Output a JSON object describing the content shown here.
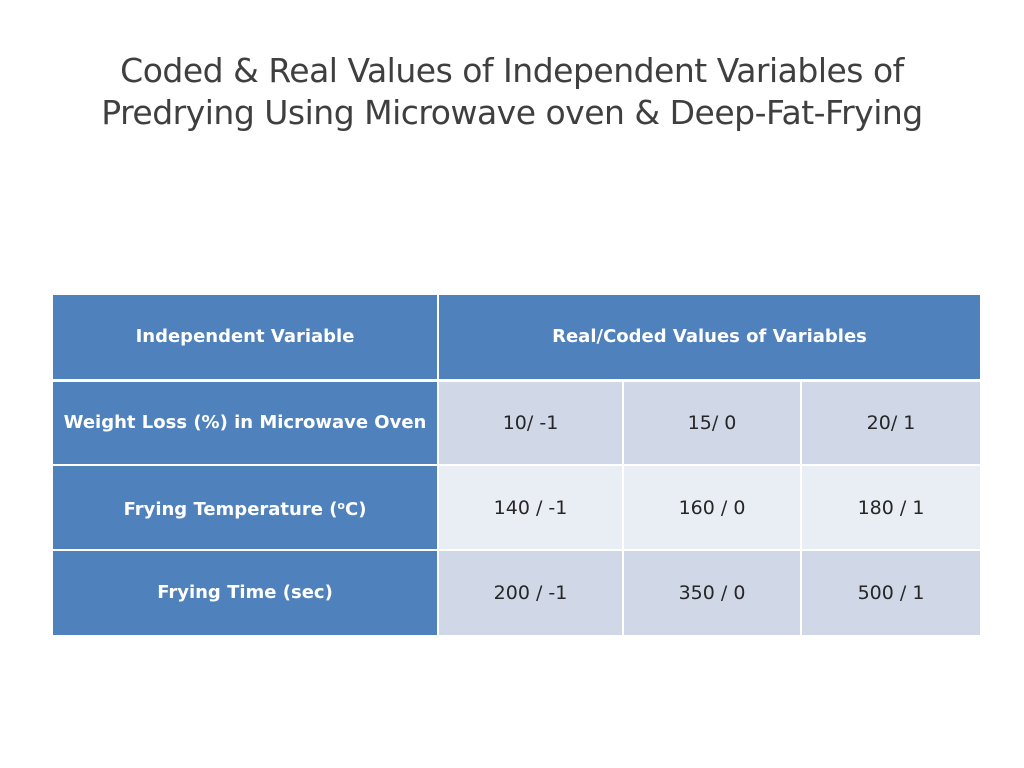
{
  "title": {
    "line1": "Coded & Real Values of Independent Variables of",
    "line2": "Predrying Using Microwave oven & Deep-Fat-Frying"
  },
  "table": {
    "headers": {
      "variable": "Independent Variable",
      "values": "Real/Coded Values of  Variables"
    },
    "rows": [
      {
        "variable": "Weight Loss (%) in Microwave Oven",
        "values": [
          "10/ -1",
          "15/ 0",
          "20/ 1"
        ]
      },
      {
        "variable_prefix": "Frying Temperature (",
        "variable_sup": "o",
        "variable_suffix": "C)",
        "values": [
          "140 / -1",
          "160 / 0",
          "180 / 1"
        ]
      },
      {
        "variable": "Frying Time (sec)",
        "values": [
          "200 / -1",
          "350 / 0",
          "500 / 1"
        ]
      }
    ]
  },
  "colors": {
    "header_fill": "#4f81bd",
    "row_fill_dark": "#d0d8e8",
    "row_fill_light": "#e9edf4",
    "title_text": "#3f3f3f"
  }
}
